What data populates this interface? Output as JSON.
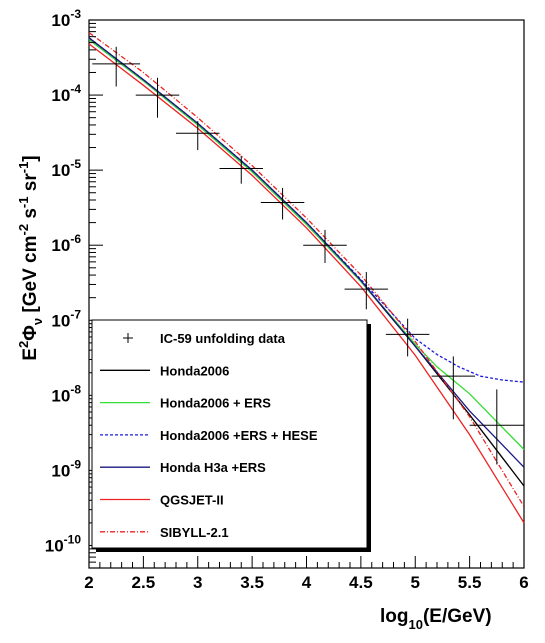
{
  "chart_data": {
    "type": "line",
    "xlabel": {
      "pre": "log",
      "sub": "10",
      "post": "(E/GeV)"
    },
    "ylabel": {
      "E": "E",
      "two": "2",
      "phi": "Φ",
      "nu": "ν",
      "unitsA": " [GeV cm",
      "m2": "-2",
      "s": " s",
      "m1a": "-1",
      "sr": " sr",
      "m1b": "-1",
      "close": "]"
    },
    "xlim": [
      2,
      6
    ],
    "ylim_log10": [
      -10.3,
      -3
    ],
    "x_ticks": [
      "2",
      "2.5",
      "3",
      "3.5",
      "4",
      "4.5",
      "5",
      "5.5",
      "6"
    ],
    "y_ticks": [
      {
        "base": "10",
        "exp": "-3"
      },
      {
        "base": "10",
        "exp": "-4"
      },
      {
        "base": "10",
        "exp": "-5"
      },
      {
        "base": "10",
        "exp": "-6"
      },
      {
        "base": "10",
        "exp": "-7"
      },
      {
        "base": "10",
        "exp": "-8"
      },
      {
        "base": "10",
        "exp": "-9"
      },
      {
        "base": "10",
        "exp": "-10"
      }
    ],
    "scale": "log-y",
    "legend_position": "lower-left",
    "data_points": {
      "name": "IC-59 unfolding data",
      "points": [
        {
          "x": 2.25,
          "y": 0.00026,
          "xerr": 0.22,
          "ylo": 0.00013,
          "yhi": 0.00044
        },
        {
          "x": 2.63,
          "y": 0.0001,
          "xerr": 0.2,
          "ylo": 5e-05,
          "yhi": 0.00017
        },
        {
          "x": 3.0,
          "y": 3.1e-05,
          "xerr": 0.2,
          "ylo": 1.85e-05,
          "yhi": 4.5e-05
        },
        {
          "x": 3.4,
          "y": 1.05e-05,
          "xerr": 0.2,
          "ylo": 6.6e-06,
          "yhi": 1.55e-05
        },
        {
          "x": 3.78,
          "y": 3.7e-06,
          "xerr": 0.2,
          "ylo": 2.2e-06,
          "yhi": 5.8e-06
        },
        {
          "x": 4.17,
          "y": 1e-06,
          "xerr": 0.2,
          "ylo": 5.8e-07,
          "yhi": 1.6e-06
        },
        {
          "x": 4.55,
          "y": 2.6e-07,
          "xerr": 0.2,
          "ylo": 1.4e-07,
          "yhi": 4.4e-07
        },
        {
          "x": 4.93,
          "y": 6.5e-08,
          "xerr": 0.2,
          "ylo": 3.3e-08,
          "yhi": 1.05e-07
        },
        {
          "x": 5.35,
          "y": 1.8e-08,
          "xerr": 0.2,
          "ylo": 4.8e-09,
          "yhi": 3.3e-08
        },
        {
          "x": 5.75,
          "y": 4e-09,
          "xerr": 0.25,
          "ylo": 1.2e-09,
          "yhi": 1.2e-08
        }
      ]
    },
    "series": [
      {
        "name": "Honda2006",
        "color": "#000000",
        "dash": "solid",
        "x": [
          2.0,
          2.5,
          3.0,
          3.5,
          4.0,
          4.5,
          5.0,
          5.5,
          6.0
        ],
        "y": [
          0.00055,
          0.000155,
          4e-05,
          9.5e-06,
          1.9e-06,
          3.3e-07,
          4.5e-08,
          5.5e-09,
          6.2e-10
        ]
      },
      {
        "name": "Honda2006 + ERS",
        "color": "#33dd33",
        "dash": "solid",
        "x": [
          2.0,
          2.5,
          3.0,
          3.5,
          4.0,
          4.5,
          5.0,
          5.2,
          5.5,
          6.0
        ],
        "y": [
          0.00055,
          0.000155,
          4e-05,
          9.5e-06,
          1.9e-06,
          3.3e-07,
          4.8e-08,
          2.4e-08,
          1.05e-08,
          1.9e-09
        ]
      },
      {
        "name": "Honda2006 +ERS + HESE",
        "color": "#1a1adc",
        "dash": "dashed",
        "x": [
          2.0,
          2.5,
          3.0,
          3.5,
          4.0,
          4.5,
          5.0,
          5.2,
          5.4,
          5.6,
          5.8,
          6.0
        ],
        "y": [
          0.00058,
          0.00016,
          4.2e-05,
          1e-05,
          2e-06,
          3.5e-07,
          5.7e-08,
          3.5e-08,
          2.4e-08,
          1.8e-08,
          1.6e-08,
          1.5e-08
        ]
      },
      {
        "name": "Honda H3a +ERS",
        "color": "#1a1a80",
        "dash": "solid",
        "x": [
          2.0,
          2.5,
          3.0,
          3.5,
          4.0,
          4.5,
          5.0,
          5.5,
          6.0
        ],
        "y": [
          0.00058,
          0.00016,
          4.2e-05,
          1e-05,
          2e-06,
          3.4e-07,
          4.5e-08,
          6.2e-09,
          1.1e-09
        ]
      },
      {
        "name": "QGSJET-II",
        "color": "#ee2222",
        "dash": "solid",
        "x": [
          2.0,
          2.5,
          3.0,
          3.5,
          4.0,
          4.5,
          5.0,
          5.5,
          6.0
        ],
        "y": [
          0.00048,
          0.000135,
          3.6e-05,
          8.5e-06,
          1.7e-06,
          2.8e-07,
          3.4e-08,
          3e-09,
          2e-10
        ]
      },
      {
        "name": "SIBYLL-2.1",
        "color": "#ee2222",
        "dash": "dashdot",
        "x": [
          2.0,
          2.5,
          3.0,
          3.5,
          4.0,
          4.5,
          5.0,
          5.5,
          6.0
        ],
        "y": [
          0.00068,
          0.0002,
          5e-05,
          1.15e-05,
          2.3e-06,
          4e-07,
          5.2e-08,
          5.2e-09,
          3.3e-10
        ]
      }
    ]
  }
}
